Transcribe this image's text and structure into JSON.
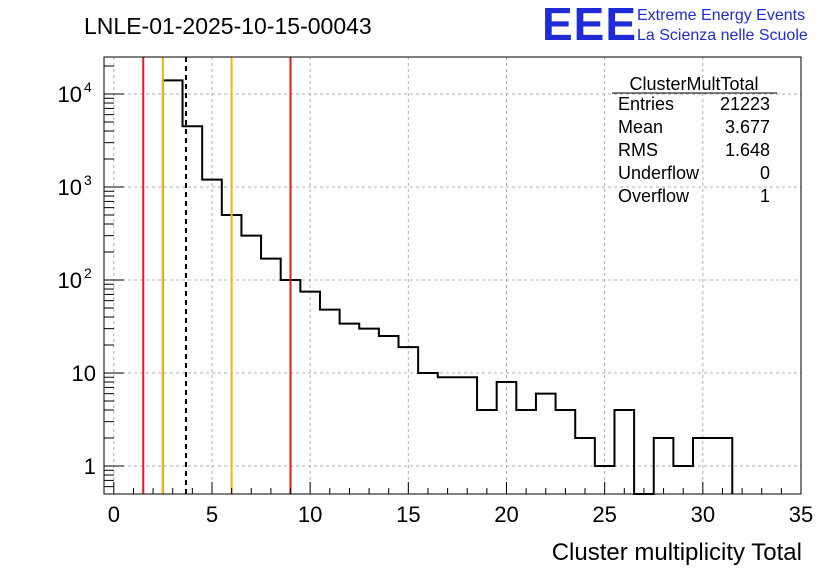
{
  "page_title": "LNLE-01-2025-10-15-00043",
  "logo": {
    "letters": "EEE",
    "line1": "Extreme Energy Events",
    "line2": "La Scienza nelle Scuole",
    "color": "#1f2bd6"
  },
  "stats_box": {
    "title": "ClusterMultTotal",
    "rows": [
      {
        "label": "Entries",
        "value": "21223"
      },
      {
        "label": "Mean",
        "value": "3.677"
      },
      {
        "label": "RMS",
        "value": "1.648"
      },
      {
        "label": "Underflow",
        "value": "0"
      },
      {
        "label": "Overflow",
        "value": "1"
      }
    ]
  },
  "chart_data": {
    "type": "histogram",
    "title": "LNLE-01-2025-10-15-00043",
    "xlabel": "Cluster multiplicity Total",
    "ylabel": "",
    "xlim": [
      -0.5,
      35
    ],
    "ylim": [
      0.5,
      25000
    ],
    "yscale": "log",
    "grid": true,
    "bin_width": 1,
    "bin_edges": [
      2.5,
      3.5,
      4.5,
      5.5,
      6.5,
      7.5,
      8.5,
      9.5,
      10.5,
      11.5,
      12.5,
      13.5,
      14.5,
      15.5,
      16.5,
      17.5,
      18.5,
      19.5,
      20.5,
      21.5,
      22.5,
      23.5,
      24.5,
      25.5,
      26.5,
      27.5,
      28.5,
      29.5,
      30.5,
      31.5
    ],
    "counts": [
      14000,
      4500,
      1200,
      500,
      300,
      170,
      100,
      75,
      48,
      34,
      30,
      25,
      19,
      10,
      9,
      9,
      4,
      8,
      4,
      6,
      4,
      2,
      1,
      4,
      0,
      2,
      1,
      2,
      2
    ],
    "x_ticks": [
      "0",
      "5",
      "10",
      "15",
      "20",
      "25",
      "30",
      "35"
    ],
    "x_tick_values": [
      0,
      5,
      10,
      15,
      20,
      25,
      30,
      35
    ],
    "y_ticks": [
      {
        "value": 1,
        "base": "1",
        "exp": ""
      },
      {
        "value": 10,
        "base": "10",
        "exp": ""
      },
      {
        "value": 100,
        "base": "10",
        "exp": "2"
      },
      {
        "value": 1000,
        "base": "10",
        "exp": "3"
      },
      {
        "value": 10000,
        "base": "10",
        "exp": "4"
      }
    ],
    "vertical_lines": [
      {
        "x": 1.5,
        "color": "#e8191b",
        "style": "solid"
      },
      {
        "x": 2.5,
        "color": "#f2b705",
        "style": "solid"
      },
      {
        "x": 3.677,
        "color": "#000000",
        "style": "dashed"
      },
      {
        "x": 6.0,
        "color": "#f2b705",
        "style": "solid"
      },
      {
        "x": 9.0,
        "color": "#e8191b",
        "style": "solid"
      }
    ]
  }
}
